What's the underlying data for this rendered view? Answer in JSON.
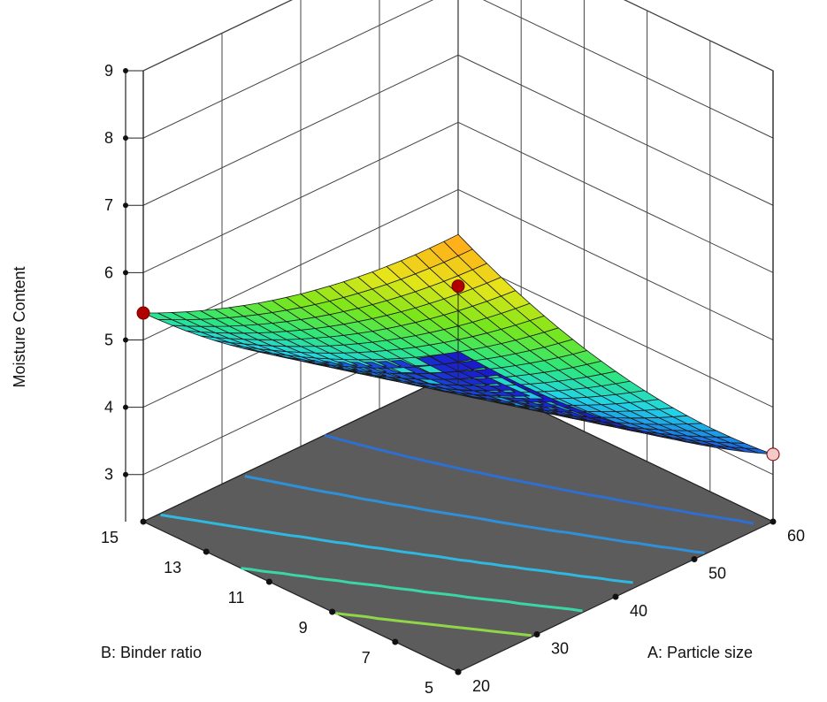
{
  "chart_data": {
    "type": "surface",
    "title": "",
    "zlabel": "Moisture Content",
    "xlabel": "A: Particle size",
    "ylabel": "B: Binder ratio",
    "x_ticks": [
      20,
      30,
      40,
      50,
      60
    ],
    "y_ticks": [
      5,
      7,
      9,
      11,
      13,
      15
    ],
    "z_ticks": [
      3,
      4,
      5,
      6,
      7,
      8,
      9
    ],
    "xlim": [
      20,
      60
    ],
    "ylim": [
      5,
      15
    ],
    "zlim": [
      2.3,
      9
    ],
    "corner_values": [
      {
        "particle_size": 20,
        "binder_ratio": 15,
        "moisture_content": 5.4
      },
      {
        "particle_size": 20,
        "binder_ratio": 5,
        "moisture_content": 8.8
      },
      {
        "particle_size": 60,
        "binder_ratio": 15,
        "moisture_content": 2.6
      },
      {
        "particle_size": 60,
        "binder_ratio": 5,
        "moisture_content": 3.3
      }
    ],
    "design_points": [
      {
        "particle_size": 20,
        "binder_ratio": 15,
        "moisture_content": 5.4,
        "color": "#b00000"
      },
      {
        "particle_size": 60,
        "binder_ratio": 5,
        "moisture_content": 3.3,
        "color": "#f6c9c9"
      },
      {
        "particle_size": 40,
        "binder_ratio": 10,
        "moisture_content": 5.8,
        "color": "#b00000"
      }
    ],
    "colormap": [
      "#1a1acc",
      "#1a7fe8",
      "#22d6e6",
      "#2ee67a",
      "#7ae61a",
      "#e6e61a",
      "#ffb01a"
    ],
    "contour_colors": [
      "#2f6fd0",
      "#2fb8e0",
      "#3ad6a6",
      "#8fd648"
    ],
    "floor_color": "#5c5c5c",
    "grid": true
  }
}
